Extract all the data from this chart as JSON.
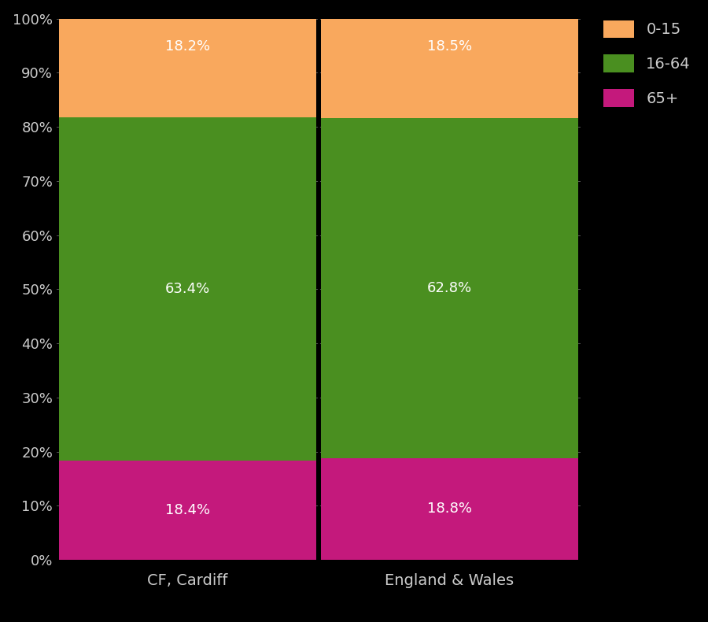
{
  "categories": [
    "CF, Cardiff",
    "England & Wales"
  ],
  "segments": {
    "65+": [
      18.4,
      18.8
    ],
    "16-64": [
      63.4,
      62.8
    ],
    "0-15": [
      18.2,
      18.5
    ]
  },
  "colors": {
    "0-15": "#f9a85d",
    "16-64": "#4a8f20",
    "65+": "#c4197c"
  },
  "labels": {
    "0-15": [
      "18.2%",
      "18.5%"
    ],
    "16-64": [
      "63.4%",
      "62.8%"
    ],
    "65+": [
      "18.4%",
      "18.8%"
    ]
  },
  "background_color": "#000000",
  "text_color": "#cccccc",
  "legend_labels": [
    "0-15",
    "16-64",
    "65+"
  ],
  "ylabel_ticks": [
    "0%",
    "10%",
    "20%",
    "30%",
    "40%",
    "50%",
    "60%",
    "70%",
    "80%",
    "90%",
    "100%"
  ],
  "ylim": [
    0,
    100
  ],
  "label_fontsize": 13,
  "tick_fontsize": 13,
  "xticklabel_fontsize": 14,
  "legend_fontsize": 14,
  "bar_width": 0.98,
  "separator_x": 0.5,
  "xlim": [
    -0.5,
    1.5
  ]
}
